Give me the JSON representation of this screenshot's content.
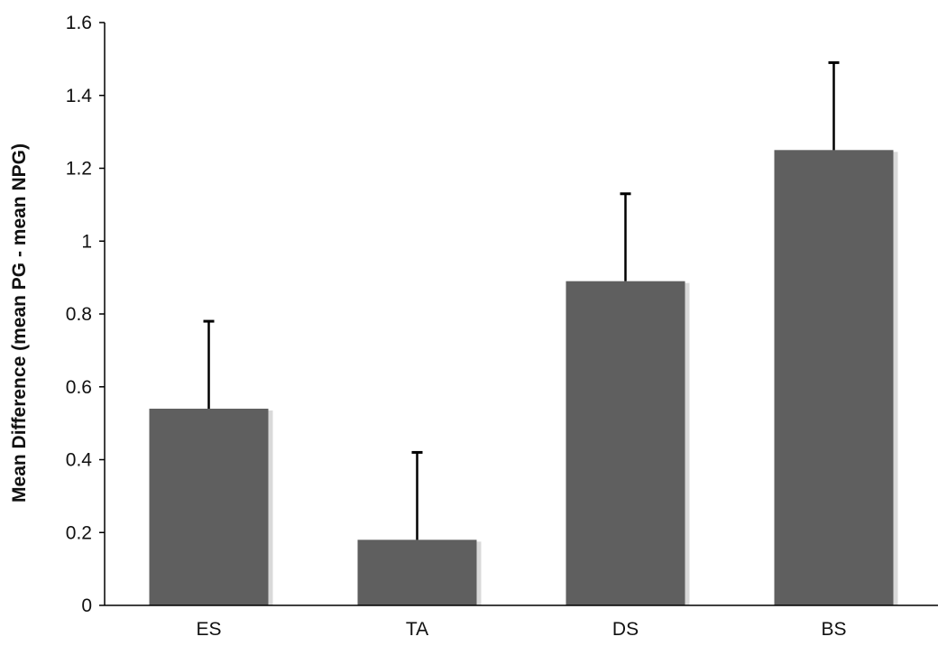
{
  "chart_data": {
    "type": "bar",
    "title": "",
    "xlabel": "",
    "ylabel": "Mean Difference (mean PG - mean NPG)",
    "categories": [
      "ES",
      "TA",
      "DS",
      "BS"
    ],
    "values": [
      0.54,
      0.18,
      0.89,
      1.25
    ],
    "error_upper": [
      0.78,
      0.42,
      1.13,
      1.49
    ],
    "ylim": [
      0,
      1.6
    ],
    "yticks": [
      0,
      0.2,
      0.4,
      0.6,
      0.8,
      1,
      1.2,
      1.4,
      1.6
    ],
    "ytick_labels": [
      "0",
      "0.2",
      "0.4",
      "0.6",
      "0.8",
      "1",
      "1.2",
      "1.4",
      "1.6"
    ],
    "grid": false,
    "legend": "none",
    "colors": {
      "bar": "#5f5f5f",
      "bar_shadow": "#d9d9d9",
      "axis": "#000000",
      "error_bar": "#000000"
    }
  }
}
